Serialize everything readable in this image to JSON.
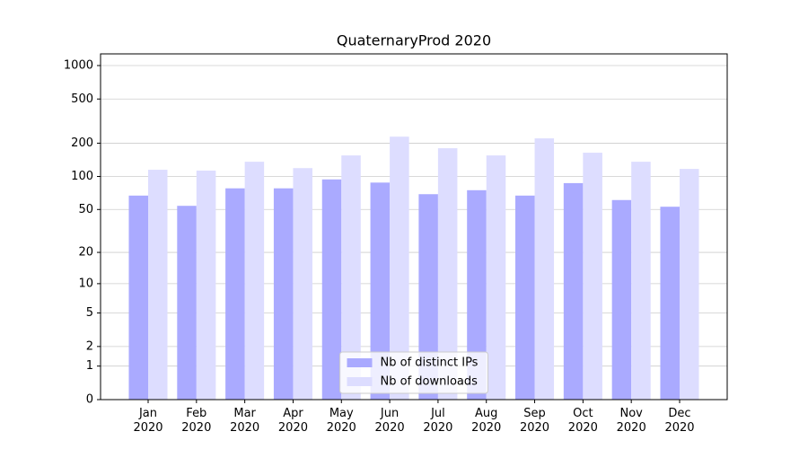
{
  "chart_data": {
    "type": "bar",
    "title": "QuaternaryProd 2020",
    "categories": [
      "Jan 2020",
      "Feb 2020",
      "Mar 2020",
      "Apr 2020",
      "May 2020",
      "Jun 2020",
      "Jul 2020",
      "Aug 2020",
      "Sep 2020",
      "Oct 2020",
      "Nov 2020",
      "Dec 2020"
    ],
    "series": [
      {
        "name": "Nb of distinct IPs",
        "color": "#aaaaff",
        "values": [
          67,
          54,
          78,
          78,
          94,
          88,
          69,
          75,
          67,
          87,
          61,
          53
        ]
      },
      {
        "name": "Nb of downloads",
        "color": "#ddddff",
        "values": [
          115,
          113,
          136,
          119,
          155,
          229,
          180,
          155,
          221,
          164,
          136,
          117
        ]
      }
    ],
    "yscale": "log1p",
    "ylim": [
      0,
      1273
    ],
    "yticks": [
      0,
      1,
      2,
      5,
      10,
      20,
      50,
      100,
      200,
      500,
      1000
    ],
    "grid": true,
    "legend": "lower center"
  }
}
